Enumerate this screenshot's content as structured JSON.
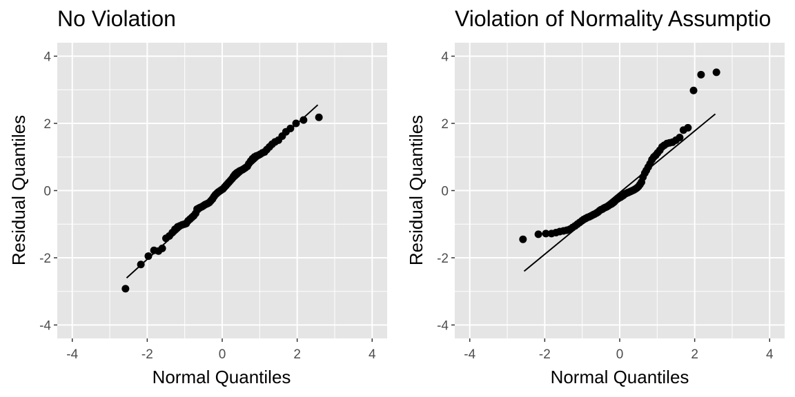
{
  "chart_data": [
    {
      "type": "scatter",
      "title": "No Violation",
      "xlabel": "Normal Quantiles",
      "ylabel": "Residual Quantiles",
      "xlim": [
        -4.4,
        4.4
      ],
      "ylim": [
        -4.4,
        4.4
      ],
      "x_ticks": [
        -4,
        -2,
        0,
        2,
        4
      ],
      "y_ticks": [
        -4,
        -2,
        0,
        2,
        4
      ],
      "x_tick_labels": [
        "-4",
        "-2",
        "0",
        "2",
        "4"
      ],
      "y_tick_labels": [
        "-4",
        "-2",
        "0",
        "2",
        "4"
      ],
      "grid": true,
      "panel_color": "#e5e5e5",
      "point_color": "#000000",
      "reference_line": {
        "x": [
          -2.55,
          2.55
        ],
        "y": [
          -2.6,
          2.55
        ]
      },
      "points": [
        [
          -2.58,
          -2.92
        ],
        [
          -2.17,
          -2.2
        ],
        [
          -1.97,
          -1.95
        ],
        [
          -1.82,
          -1.78
        ],
        [
          -1.7,
          -1.8
        ],
        [
          -1.6,
          -1.72
        ],
        [
          -1.5,
          -1.42
        ],
        [
          -1.41,
          -1.35
        ],
        [
          -1.33,
          -1.25
        ],
        [
          -1.26,
          -1.15
        ],
        [
          -1.19,
          -1.08
        ],
        [
          -1.13,
          -1.05
        ],
        [
          -1.07,
          -1.02
        ],
        [
          -1.01,
          -1.0
        ],
        [
          -0.96,
          -0.98
        ],
        [
          -0.91,
          -0.9
        ],
        [
          -0.86,
          -0.85
        ],
        [
          -0.81,
          -0.8
        ],
        [
          -0.76,
          -0.75
        ],
        [
          -0.71,
          -0.68
        ],
        [
          -0.67,
          -0.55
        ],
        [
          -0.62,
          -0.52
        ],
        [
          -0.58,
          -0.5
        ],
        [
          -0.54,
          -0.48
        ],
        [
          -0.5,
          -0.45
        ],
        [
          -0.46,
          -0.42
        ],
        [
          -0.42,
          -0.4
        ],
        [
          -0.38,
          -0.38
        ],
        [
          -0.34,
          -0.35
        ],
        [
          -0.3,
          -0.3
        ],
        [
          -0.26,
          -0.25
        ],
        [
          -0.22,
          -0.18
        ],
        [
          -0.18,
          -0.12
        ],
        [
          -0.14,
          -0.08
        ],
        [
          -0.1,
          -0.04
        ],
        [
          -0.06,
          -0.01
        ],
        [
          -0.02,
          0.02
        ],
        [
          0.02,
          0.05
        ],
        [
          0.06,
          0.1
        ],
        [
          0.1,
          0.15
        ],
        [
          0.14,
          0.2
        ],
        [
          0.18,
          0.25
        ],
        [
          0.22,
          0.3
        ],
        [
          0.26,
          0.35
        ],
        [
          0.3,
          0.42
        ],
        [
          0.34,
          0.48
        ],
        [
          0.38,
          0.52
        ],
        [
          0.42,
          0.55
        ],
        [
          0.46,
          0.58
        ],
        [
          0.5,
          0.6
        ],
        [
          0.54,
          0.62
        ],
        [
          0.58,
          0.65
        ],
        [
          0.62,
          0.68
        ],
        [
          0.67,
          0.72
        ],
        [
          0.71,
          0.8
        ],
        [
          0.76,
          0.88
        ],
        [
          0.81,
          0.95
        ],
        [
          0.86,
          1.0
        ],
        [
          0.91,
          1.03
        ],
        [
          0.96,
          1.05
        ],
        [
          1.01,
          1.08
        ],
        [
          1.07,
          1.12
        ],
        [
          1.13,
          1.15
        ],
        [
          1.19,
          1.22
        ],
        [
          1.26,
          1.3
        ],
        [
          1.33,
          1.38
        ],
        [
          1.41,
          1.45
        ],
        [
          1.5,
          1.5
        ],
        [
          1.6,
          1.62
        ],
        [
          1.7,
          1.75
        ],
        [
          1.82,
          1.85
        ],
        [
          1.97,
          2.0
        ],
        [
          2.17,
          2.1
        ],
        [
          2.58,
          2.18
        ]
      ]
    },
    {
      "type": "scatter",
      "title": "Violation of Normality Assumptio",
      "xlabel": "Normal Quantiles",
      "ylabel": "Residual Quantiles",
      "xlim": [
        -4.4,
        4.4
      ],
      "ylim": [
        -4.4,
        4.4
      ],
      "x_ticks": [
        -4,
        -2,
        0,
        2,
        4
      ],
      "y_ticks": [
        -4,
        -2,
        0,
        2,
        4
      ],
      "x_tick_labels": [
        "-4",
        "-2",
        "0",
        "2",
        "4"
      ],
      "y_tick_labels": [
        "-4",
        "-2",
        "0",
        "2",
        "4"
      ],
      "grid": true,
      "panel_color": "#e5e5e5",
      "point_color": "#000000",
      "reference_line": {
        "x": [
          -2.55,
          2.55
        ],
        "y": [
          -2.4,
          2.28
        ]
      },
      "points": [
        [
          -2.58,
          -1.45
        ],
        [
          -2.17,
          -1.3
        ],
        [
          -1.97,
          -1.28
        ],
        [
          -1.82,
          -1.28
        ],
        [
          -1.7,
          -1.25
        ],
        [
          -1.6,
          -1.22
        ],
        [
          -1.5,
          -1.2
        ],
        [
          -1.41,
          -1.18
        ],
        [
          -1.33,
          -1.15
        ],
        [
          -1.26,
          -1.1
        ],
        [
          -1.19,
          -1.05
        ],
        [
          -1.13,
          -1.0
        ],
        [
          -1.07,
          -0.95
        ],
        [
          -1.01,
          -0.9
        ],
        [
          -0.96,
          -0.86
        ],
        [
          -0.91,
          -0.83
        ],
        [
          -0.86,
          -0.8
        ],
        [
          -0.81,
          -0.78
        ],
        [
          -0.76,
          -0.75
        ],
        [
          -0.71,
          -0.72
        ],
        [
          -0.67,
          -0.7
        ],
        [
          -0.62,
          -0.67
        ],
        [
          -0.58,
          -0.64
        ],
        [
          -0.54,
          -0.6
        ],
        [
          -0.5,
          -0.57
        ],
        [
          -0.46,
          -0.55
        ],
        [
          -0.42,
          -0.52
        ],
        [
          -0.38,
          -0.5
        ],
        [
          -0.34,
          -0.48
        ],
        [
          -0.3,
          -0.45
        ],
        [
          -0.26,
          -0.42
        ],
        [
          -0.22,
          -0.4
        ],
        [
          -0.18,
          -0.37
        ],
        [
          -0.14,
          -0.33
        ],
        [
          -0.1,
          -0.28
        ],
        [
          -0.06,
          -0.25
        ],
        [
          -0.02,
          -0.22
        ],
        [
          0.02,
          -0.2
        ],
        [
          0.06,
          -0.17
        ],
        [
          0.1,
          -0.14
        ],
        [
          0.14,
          -0.1
        ],
        [
          0.18,
          -0.08
        ],
        [
          0.22,
          -0.06
        ],
        [
          0.26,
          -0.04
        ],
        [
          0.3,
          -0.02
        ],
        [
          0.34,
          0.0
        ],
        [
          0.38,
          0.02
        ],
        [
          0.42,
          0.05
        ],
        [
          0.46,
          0.08
        ],
        [
          0.5,
          0.12
        ],
        [
          0.54,
          0.18
        ],
        [
          0.58,
          0.25
        ],
        [
          0.62,
          0.4
        ],
        [
          0.67,
          0.52
        ],
        [
          0.71,
          0.6
        ],
        [
          0.76,
          0.7
        ],
        [
          0.81,
          0.8
        ],
        [
          0.86,
          0.92
        ],
        [
          0.91,
          1.0
        ],
        [
          0.96,
          1.05
        ],
        [
          1.01,
          1.12
        ],
        [
          1.07,
          1.2
        ],
        [
          1.13,
          1.3
        ],
        [
          1.19,
          1.35
        ],
        [
          1.26,
          1.4
        ],
        [
          1.33,
          1.42
        ],
        [
          1.41,
          1.44
        ],
        [
          1.5,
          1.5
        ],
        [
          1.6,
          1.58
        ],
        [
          1.7,
          1.8
        ],
        [
          1.82,
          1.87
        ],
        [
          1.97,
          2.98
        ],
        [
          2.17,
          3.45
        ],
        [
          2.58,
          3.52
        ]
      ]
    }
  ]
}
